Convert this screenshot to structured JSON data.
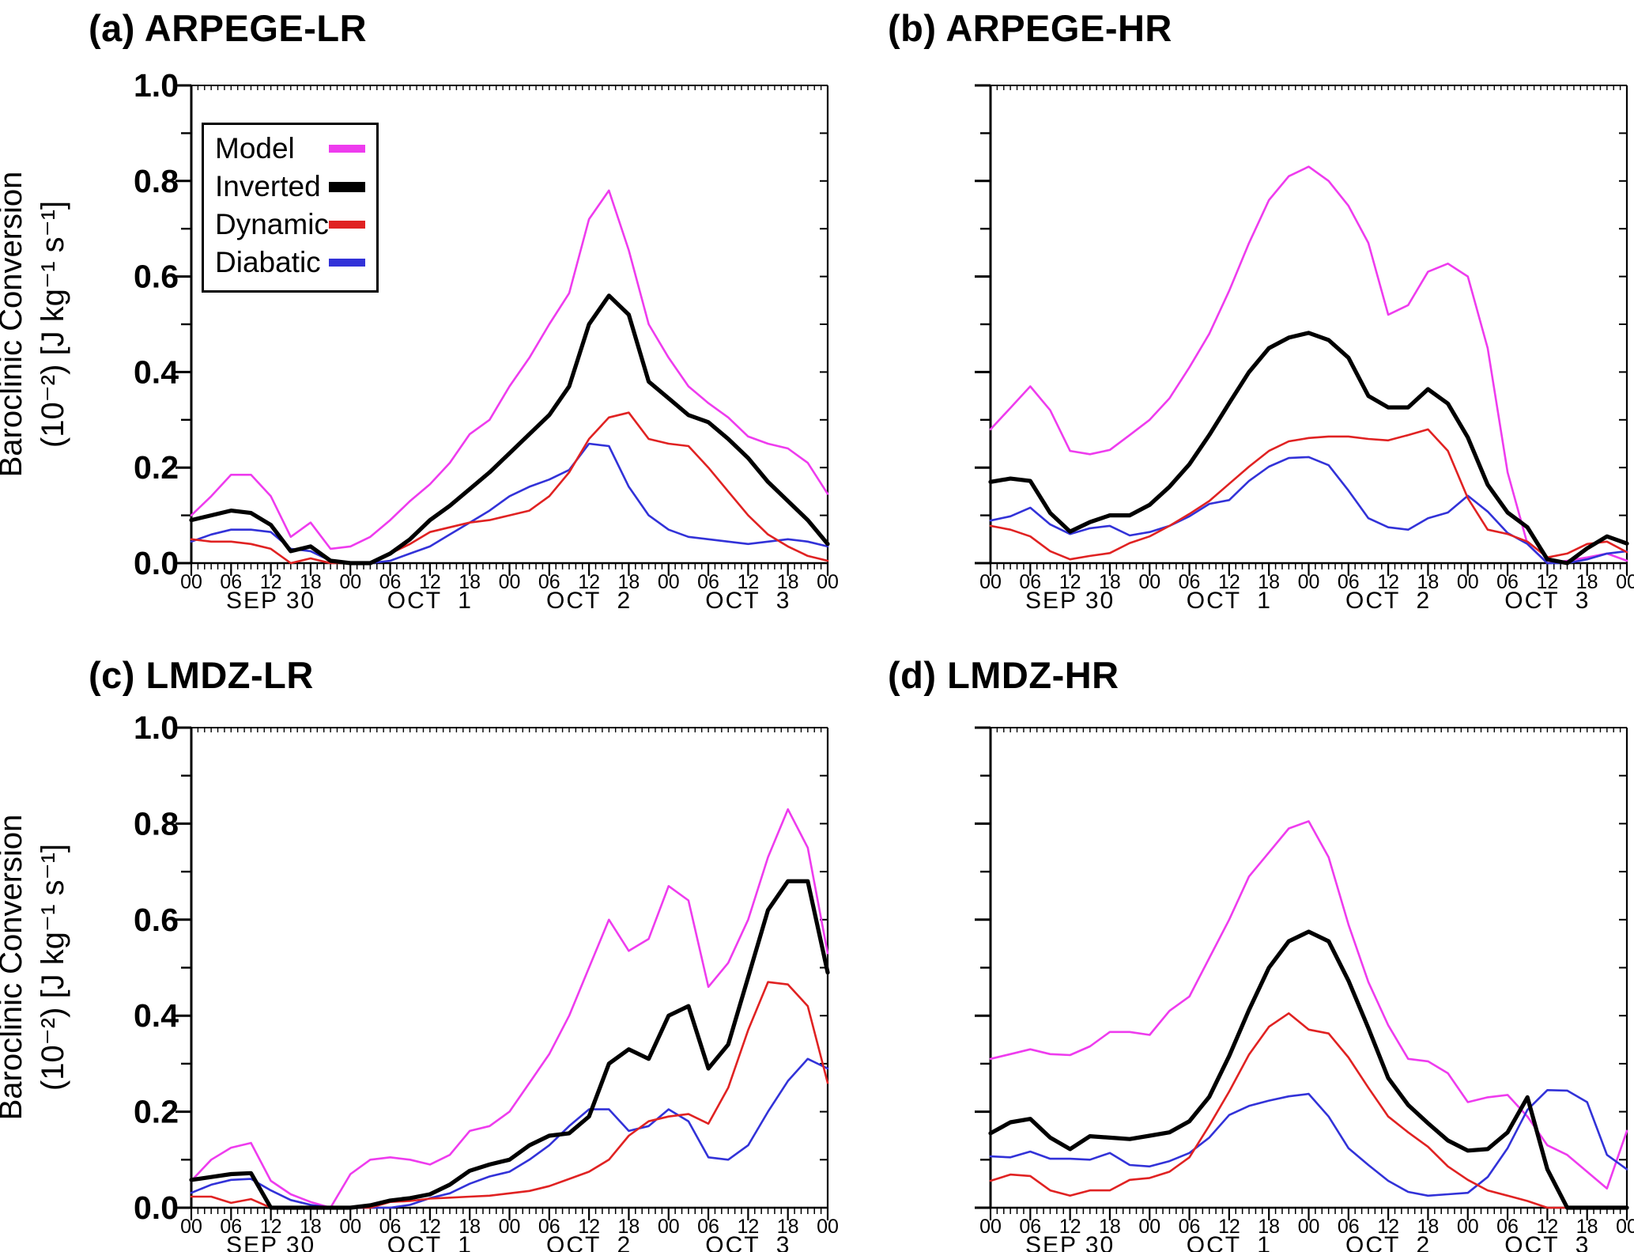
{
  "figure": {
    "background": "#ffffff"
  },
  "legend": {
    "items": [
      {
        "label": "Model",
        "color": "#ee3cee"
      },
      {
        "label": "Inverted",
        "color": "#000000"
      },
      {
        "label": "Dynamic",
        "color": "#e02222"
      },
      {
        "label": "Diabatic",
        "color": "#3232d8"
      }
    ]
  },
  "axes": {
    "ylabel_line1": "Baroclinic Conversion",
    "ylabel_line2": "(10⁻²) [J kg⁻¹ s⁻¹]",
    "y_tick_labels": [
      "1.0",
      "0.8",
      "0.6",
      "0.4",
      "0.2",
      "0.0"
    ],
    "y_tick_values": [
      1.0,
      0.8,
      0.6,
      0.4,
      0.2,
      0.0
    ],
    "x_hour_labels": [
      "00",
      "06",
      "12",
      "18"
    ],
    "day_labels": [
      "SEP 30",
      "OCT  1",
      "OCT  2",
      "OCT  3"
    ],
    "ylim": [
      0.0,
      1.0
    ],
    "x_span_hours": 96,
    "grid": "off",
    "legend_position": "upper-left panel (a)"
  },
  "chart_data": [
    {
      "panel": "a",
      "title": "(a) ARPEGE-LR",
      "type": "line",
      "x_start": "SEP 30 00UTC",
      "x_end": "OCT 4 00UTC",
      "x_step_hours": 3,
      "ylim": [
        0.0,
        1.0
      ],
      "series": [
        {
          "name": "Model",
          "color": "#ee3cee",
          "width": 2.6,
          "values": [
            0.1,
            0.14,
            0.185,
            0.185,
            0.14,
            0.055,
            0.085,
            0.03,
            0.035,
            0.055,
            0.09,
            0.13,
            0.165,
            0.21,
            0.27,
            0.3,
            0.37,
            0.43,
            0.5,
            0.565,
            0.72,
            0.78,
            0.655,
            0.5,
            0.43,
            0.37,
            0.335,
            0.305,
            0.265,
            0.25,
            0.24,
            0.21,
            0.145
          ]
        },
        {
          "name": "Inverted",
          "color": "#000000",
          "width": 5.2,
          "values": [
            0.09,
            0.1,
            0.11,
            0.105,
            0.08,
            0.025,
            0.035,
            0.005,
            0.0,
            0.0,
            0.02,
            0.05,
            0.09,
            0.12,
            0.155,
            0.19,
            0.23,
            0.27,
            0.31,
            0.37,
            0.5,
            0.56,
            0.52,
            0.38,
            0.345,
            0.31,
            0.295,
            0.26,
            0.22,
            0.17,
            0.13,
            0.09,
            0.04
          ]
        },
        {
          "name": "Dynamic",
          "color": "#e02222",
          "width": 2.6,
          "values": [
            0.05,
            0.045,
            0.045,
            0.04,
            0.03,
            0.0,
            0.01,
            0.0,
            0.0,
            0.0,
            0.02,
            0.04,
            0.065,
            0.075,
            0.085,
            0.09,
            0.1,
            0.11,
            0.14,
            0.19,
            0.26,
            0.305,
            0.315,
            0.26,
            0.25,
            0.245,
            0.2,
            0.15,
            0.1,
            0.06,
            0.035,
            0.015,
            0.005
          ]
        },
        {
          "name": "Diabatic",
          "color": "#3232d8",
          "width": 2.6,
          "values": [
            0.045,
            0.06,
            0.07,
            0.07,
            0.065,
            0.03,
            0.025,
            0.005,
            0.0,
            0.0,
            0.005,
            0.02,
            0.035,
            0.06,
            0.085,
            0.11,
            0.14,
            0.16,
            0.175,
            0.195,
            0.25,
            0.245,
            0.16,
            0.1,
            0.07,
            0.055,
            0.05,
            0.045,
            0.04,
            0.045,
            0.05,
            0.045,
            0.035
          ]
        }
      ]
    },
    {
      "panel": "b",
      "title": "(b) ARPEGE-HR",
      "type": "line",
      "x_start": "SEP 30 00UTC",
      "x_end": "OCT 4 00UTC",
      "x_step_hours": 3,
      "ylim": [
        0.0,
        1.0
      ],
      "series": [
        {
          "name": "Model",
          "color": "#ee3cee",
          "width": 2.6,
          "values": [
            0.28,
            0.325,
            0.37,
            0.32,
            0.235,
            0.228,
            0.237,
            0.268,
            0.3,
            0.345,
            0.41,
            0.48,
            0.57,
            0.67,
            0.76,
            0.81,
            0.83,
            0.8,
            0.748,
            0.67,
            0.52,
            0.54,
            0.61,
            0.627,
            0.6,
            0.45,
            0.19,
            0.04,
            0.0,
            0.005,
            0.012,
            0.02,
            0.005
          ]
        },
        {
          "name": "Inverted",
          "color": "#000000",
          "width": 5.2,
          "values": [
            0.17,
            0.177,
            0.172,
            0.105,
            0.066,
            0.086,
            0.1,
            0.1,
            0.122,
            0.16,
            0.207,
            0.268,
            0.335,
            0.4,
            0.45,
            0.472,
            0.482,
            0.467,
            0.43,
            0.35,
            0.326,
            0.326,
            0.364,
            0.334,
            0.263,
            0.164,
            0.106,
            0.075,
            0.008,
            0.0,
            0.031,
            0.056,
            0.041
          ]
        },
        {
          "name": "Dynamic",
          "color": "#e02222",
          "width": 2.6,
          "values": [
            0.078,
            0.07,
            0.056,
            0.025,
            0.008,
            0.015,
            0.021,
            0.042,
            0.056,
            0.078,
            0.103,
            0.13,
            0.166,
            0.202,
            0.235,
            0.255,
            0.262,
            0.265,
            0.265,
            0.26,
            0.257,
            0.268,
            0.28,
            0.235,
            0.136,
            0.07,
            0.061,
            0.045,
            0.012,
            0.02,
            0.04,
            0.045,
            0.023
          ]
        },
        {
          "name": "Diabatic",
          "color": "#3232d8",
          "width": 2.6,
          "values": [
            0.089,
            0.098,
            0.116,
            0.081,
            0.061,
            0.073,
            0.078,
            0.058,
            0.065,
            0.078,
            0.098,
            0.124,
            0.132,
            0.172,
            0.202,
            0.22,
            0.222,
            0.205,
            0.152,
            0.094,
            0.075,
            0.07,
            0.094,
            0.106,
            0.141,
            0.108,
            0.063,
            0.04,
            0.0,
            0.0,
            0.008,
            0.02,
            0.025
          ]
        }
      ]
    },
    {
      "panel": "c",
      "title": "(c) LMDZ-LR",
      "type": "line",
      "x_start": "SEP 30 00UTC",
      "x_end": "OCT 4 00UTC",
      "x_step_hours": 3,
      "ylim": [
        0.0,
        1.0
      ],
      "series": [
        {
          "name": "Model",
          "color": "#ee3cee",
          "width": 2.6,
          "values": [
            0.056,
            0.1,
            0.125,
            0.135,
            0.056,
            0.028,
            0.012,
            0.0,
            0.07,
            0.1,
            0.105,
            0.1,
            0.09,
            0.11,
            0.16,
            0.17,
            0.2,
            0.26,
            0.32,
            0.4,
            0.5,
            0.6,
            0.535,
            0.56,
            0.67,
            0.64,
            0.46,
            0.51,
            0.6,
            0.73,
            0.83,
            0.75,
            0.53
          ]
        },
        {
          "name": "Inverted",
          "color": "#000000",
          "width": 5.2,
          "values": [
            0.058,
            0.064,
            0.07,
            0.072,
            0.0,
            0.0,
            0.0,
            0.0,
            0.0,
            0.005,
            0.015,
            0.02,
            0.028,
            0.048,
            0.077,
            0.09,
            0.1,
            0.13,
            0.15,
            0.155,
            0.19,
            0.3,
            0.33,
            0.31,
            0.4,
            0.42,
            0.29,
            0.34,
            0.48,
            0.62,
            0.68,
            0.68,
            0.49
          ]
        },
        {
          "name": "Dynamic",
          "color": "#e02222",
          "width": 2.6,
          "values": [
            0.023,
            0.023,
            0.01,
            0.018,
            0.0,
            0.0,
            0.0,
            0.0,
            0.0,
            0.0,
            0.012,
            0.014,
            0.019,
            0.021,
            0.023,
            0.025,
            0.03,
            0.035,
            0.045,
            0.06,
            0.075,
            0.1,
            0.15,
            0.18,
            0.19,
            0.195,
            0.175,
            0.25,
            0.37,
            0.47,
            0.465,
            0.42,
            0.26
          ]
        },
        {
          "name": "Diabatic",
          "color": "#3232d8",
          "width": 2.6,
          "values": [
            0.031,
            0.048,
            0.058,
            0.06,
            0.036,
            0.016,
            0.006,
            0.0,
            0.0,
            0.0,
            0.0,
            0.006,
            0.02,
            0.03,
            0.05,
            0.065,
            0.075,
            0.1,
            0.13,
            0.17,
            0.205,
            0.205,
            0.16,
            0.17,
            0.205,
            0.18,
            0.105,
            0.1,
            0.13,
            0.2,
            0.264,
            0.31,
            0.29
          ]
        }
      ]
    },
    {
      "panel": "d",
      "title": "(d) LMDZ-HR",
      "type": "line",
      "x_start": "SEP 30 00UTC",
      "x_end": "OCT 4 00UTC",
      "x_step_hours": 3,
      "ylim": [
        0.0,
        1.0
      ],
      "series": [
        {
          "name": "Model",
          "color": "#ee3cee",
          "width": 2.6,
          "values": [
            0.31,
            0.32,
            0.33,
            0.32,
            0.318,
            0.336,
            0.366,
            0.366,
            0.36,
            0.41,
            0.44,
            0.52,
            0.6,
            0.69,
            0.74,
            0.79,
            0.805,
            0.73,
            0.59,
            0.47,
            0.38,
            0.31,
            0.305,
            0.28,
            0.22,
            0.23,
            0.235,
            0.19,
            0.13,
            0.11,
            0.075,
            0.04,
            0.16
          ]
        },
        {
          "name": "Inverted",
          "color": "#000000",
          "width": 5.2,
          "values": [
            0.155,
            0.178,
            0.185,
            0.146,
            0.122,
            0.149,
            0.146,
            0.143,
            0.15,
            0.157,
            0.18,
            0.231,
            0.316,
            0.412,
            0.5,
            0.555,
            0.575,
            0.555,
            0.473,
            0.374,
            0.27,
            0.214,
            0.176,
            0.14,
            0.119,
            0.122,
            0.157,
            0.23,
            0.08,
            0.0,
            0.0,
            0.0,
            0.0
          ]
        },
        {
          "name": "Dynamic",
          "color": "#e02222",
          "width": 2.6,
          "values": [
            0.056,
            0.069,
            0.066,
            0.036,
            0.025,
            0.036,
            0.036,
            0.058,
            0.062,
            0.075,
            0.105,
            0.171,
            0.242,
            0.319,
            0.377,
            0.405,
            0.371,
            0.363,
            0.313,
            0.25,
            0.19,
            0.157,
            0.127,
            0.086,
            0.058,
            0.036,
            0.025,
            0.014,
            0.0,
            0.0,
            0.0,
            0.0,
            0.0
          ]
        },
        {
          "name": "Diabatic",
          "color": "#3232d8",
          "width": 2.6,
          "values": [
            0.107,
            0.105,
            0.117,
            0.102,
            0.102,
            0.1,
            0.114,
            0.089,
            0.086,
            0.097,
            0.114,
            0.146,
            0.193,
            0.212,
            0.223,
            0.232,
            0.237,
            0.19,
            0.124,
            0.089,
            0.056,
            0.033,
            0.025,
            0.028,
            0.031,
            0.064,
            0.124,
            0.204,
            0.245,
            0.244,
            0.22,
            0.11,
            0.08
          ]
        }
      ]
    }
  ]
}
